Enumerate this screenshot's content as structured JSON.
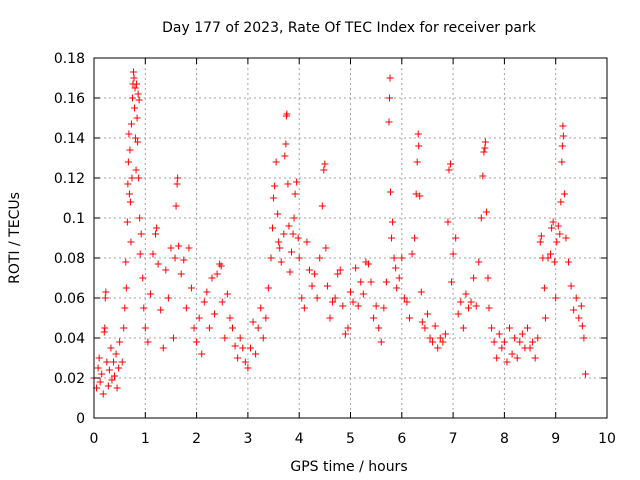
{
  "chart_data": {
    "type": "scatter",
    "title": "Day 177 of 2023, Rate Of TEC Index for receiver park",
    "xlabel": "GPS time / hours",
    "ylabel": "ROTI / TECUs",
    "xlim": [
      0,
      10
    ],
    "ylim": [
      0,
      0.18
    ],
    "xticks": [
      "0",
      "1",
      "2",
      "3",
      "4",
      "5",
      "6",
      "7",
      "8",
      "9",
      "10"
    ],
    "yticks": [
      "0",
      "0.02",
      "0.04",
      "0.06",
      "0.08",
      "0.1",
      "0.12",
      "0.14",
      "0.16",
      "0.18"
    ],
    "grid": true,
    "marker": "+",
    "colors": {
      "points": "#ff0000",
      "grid": "#a0a0a0",
      "axes": "#000000"
    },
    "series": [
      {
        "points": [
          [
            0.0,
            0.02
          ],
          [
            0.05,
            0.015
          ],
          [
            0.08,
            0.025
          ],
          [
            0.1,
            0.03
          ],
          [
            0.12,
            0.018
          ],
          [
            0.15,
            0.022
          ],
          [
            0.18,
            0.012
          ],
          [
            0.2,
            0.043
          ],
          [
            0.21,
            0.045
          ],
          [
            0.22,
            0.06
          ],
          [
            0.23,
            0.063
          ],
          [
            0.25,
            0.028
          ],
          [
            0.28,
            0.016
          ],
          [
            0.3,
            0.024
          ],
          [
            0.33,
            0.035
          ],
          [
            0.35,
            0.019
          ],
          [
            0.38,
            0.028
          ],
          [
            0.4,
            0.021
          ],
          [
            0.43,
            0.032
          ],
          [
            0.45,
            0.015
          ],
          [
            0.48,
            0.025
          ],
          [
            0.5,
            0.038
          ],
          [
            0.55,
            0.028
          ],
          [
            0.58,
            0.045
          ],
          [
            0.6,
            0.055
          ],
          [
            0.62,
            0.078
          ],
          [
            0.63,
            0.065
          ],
          [
            0.65,
            0.098
          ],
          [
            0.66,
            0.117
          ],
          [
            0.67,
            0.128
          ],
          [
            0.68,
            0.142
          ],
          [
            0.69,
            0.112
          ],
          [
            0.7,
            0.134
          ],
          [
            0.71,
            0.108
          ],
          [
            0.72,
            0.088
          ],
          [
            0.73,
            0.147
          ],
          [
            0.74,
            0.12
          ],
          [
            0.75,
            0.16
          ],
          [
            0.76,
            0.167
          ],
          [
            0.77,
            0.173
          ],
          [
            0.78,
            0.17
          ],
          [
            0.79,
            0.155
          ],
          [
            0.8,
            0.165
          ],
          [
            0.81,
            0.14
          ],
          [
            0.82,
            0.124
          ],
          [
            0.83,
            0.167
          ],
          [
            0.84,
            0.15
          ],
          [
            0.85,
            0.138
          ],
          [
            0.86,
            0.162
          ],
          [
            0.87,
            0.12
          ],
          [
            0.88,
            0.159
          ],
          [
            0.89,
            0.1
          ],
          [
            0.9,
            0.082
          ],
          [
            0.92,
            0.092
          ],
          [
            0.95,
            0.07
          ],
          [
            0.97,
            0.055
          ],
          [
            1.0,
            0.045
          ],
          [
            1.05,
            0.038
          ],
          [
            1.1,
            0.062
          ],
          [
            1.15,
            0.082
          ],
          [
            1.2,
            0.092
          ],
          [
            1.22,
            0.095
          ],
          [
            1.25,
            0.077
          ],
          [
            1.3,
            0.054
          ],
          [
            1.35,
            0.035
          ],
          [
            1.4,
            0.074
          ],
          [
            1.45,
            0.06
          ],
          [
            1.5,
            0.085
          ],
          [
            1.55,
            0.04
          ],
          [
            1.58,
            0.08
          ],
          [
            1.6,
            0.106
          ],
          [
            1.62,
            0.117
          ],
          [
            1.63,
            0.12
          ],
          [
            1.65,
            0.086
          ],
          [
            1.7,
            0.072
          ],
          [
            1.75,
            0.079
          ],
          [
            1.8,
            0.055
          ],
          [
            1.85,
            0.085
          ],
          [
            1.9,
            0.065
          ],
          [
            1.95,
            0.045
          ],
          [
            2.0,
            0.038
          ],
          [
            2.05,
            0.05
          ],
          [
            2.1,
            0.032
          ],
          [
            2.15,
            0.058
          ],
          [
            2.2,
            0.063
          ],
          [
            2.25,
            0.045
          ],
          [
            2.3,
            0.07
          ],
          [
            2.35,
            0.052
          ],
          [
            2.4,
            0.072
          ],
          [
            2.45,
            0.077
          ],
          [
            2.48,
            0.076
          ],
          [
            2.5,
            0.058
          ],
          [
            2.55,
            0.04
          ],
          [
            2.6,
            0.062
          ],
          [
            2.65,
            0.05
          ],
          [
            2.7,
            0.045
          ],
          [
            2.75,
            0.036
          ],
          [
            2.8,
            0.03
          ],
          [
            2.85,
            0.04
          ],
          [
            2.9,
            0.035
          ],
          [
            2.95,
            0.028
          ],
          [
            3.0,
            0.025
          ],
          [
            3.05,
            0.035
          ],
          [
            3.1,
            0.048
          ],
          [
            3.15,
            0.032
          ],
          [
            3.2,
            0.045
          ],
          [
            3.25,
            0.055
          ],
          [
            3.3,
            0.04
          ],
          [
            3.35,
            0.05
          ],
          [
            3.4,
            0.065
          ],
          [
            3.45,
            0.08
          ],
          [
            3.48,
            0.095
          ],
          [
            3.5,
            0.11
          ],
          [
            3.52,
            0.116
          ],
          [
            3.55,
            0.128
          ],
          [
            3.58,
            0.102
          ],
          [
            3.6,
            0.088
          ],
          [
            3.62,
            0.085
          ],
          [
            3.65,
            0.078
          ],
          [
            3.7,
            0.092
          ],
          [
            3.72,
            0.131
          ],
          [
            3.74,
            0.137
          ],
          [
            3.75,
            0.151
          ],
          [
            3.76,
            0.152
          ],
          [
            3.78,
            0.117
          ],
          [
            3.8,
            0.096
          ],
          [
            3.82,
            0.073
          ],
          [
            3.85,
            0.083
          ],
          [
            3.88,
            0.092
          ],
          [
            3.9,
            0.1
          ],
          [
            3.92,
            0.112
          ],
          [
            3.95,
            0.118
          ],
          [
            3.98,
            0.09
          ],
          [
            4.0,
            0.08
          ],
          [
            4.05,
            0.06
          ],
          [
            4.1,
            0.055
          ],
          [
            4.15,
            0.088
          ],
          [
            4.2,
            0.074
          ],
          [
            4.25,
            0.066
          ],
          [
            4.3,
            0.072
          ],
          [
            4.35,
            0.06
          ],
          [
            4.4,
            0.08
          ],
          [
            4.45,
            0.106
          ],
          [
            4.48,
            0.124
          ],
          [
            4.5,
            0.127
          ],
          [
            4.52,
            0.085
          ],
          [
            4.55,
            0.066
          ],
          [
            4.6,
            0.05
          ],
          [
            4.65,
            0.058
          ],
          [
            4.7,
            0.06
          ],
          [
            4.75,
            0.072
          ],
          [
            4.8,
            0.074
          ],
          [
            4.85,
            0.056
          ],
          [
            4.9,
            0.042
          ],
          [
            4.95,
            0.045
          ],
          [
            5.0,
            0.063
          ],
          [
            5.05,
            0.058
          ],
          [
            5.1,
            0.075
          ],
          [
            5.15,
            0.056
          ],
          [
            5.2,
            0.068
          ],
          [
            5.25,
            0.062
          ],
          [
            5.3,
            0.078
          ],
          [
            5.35,
            0.077
          ],
          [
            5.4,
            0.068
          ],
          [
            5.45,
            0.05
          ],
          [
            5.5,
            0.056
          ],
          [
            5.55,
            0.045
          ],
          [
            5.6,
            0.038
          ],
          [
            5.65,
            0.055
          ],
          [
            5.7,
            0.068
          ],
          [
            5.75,
            0.148
          ],
          [
            5.76,
            0.16
          ],
          [
            5.77,
            0.17
          ],
          [
            5.78,
            0.113
          ],
          [
            5.8,
            0.09
          ],
          [
            5.82,
            0.098
          ],
          [
            5.85,
            0.08
          ],
          [
            5.88,
            0.075
          ],
          [
            5.9,
            0.065
          ],
          [
            5.95,
            0.07
          ],
          [
            6.0,
            0.08
          ],
          [
            6.05,
            0.06
          ],
          [
            6.1,
            0.058
          ],
          [
            6.15,
            0.05
          ],
          [
            6.2,
            0.082
          ],
          [
            6.25,
            0.09
          ],
          [
            6.28,
            0.112
          ],
          [
            6.3,
            0.128
          ],
          [
            6.32,
            0.142
          ],
          [
            6.33,
            0.136
          ],
          [
            6.35,
            0.111
          ],
          [
            6.38,
            0.063
          ],
          [
            6.4,
            0.048
          ],
          [
            6.45,
            0.045
          ],
          [
            6.5,
            0.052
          ],
          [
            6.55,
            0.04
          ],
          [
            6.6,
            0.038
          ],
          [
            6.65,
            0.046
          ],
          [
            6.7,
            0.035
          ],
          [
            6.75,
            0.04
          ],
          [
            6.8,
            0.038
          ],
          [
            6.85,
            0.042
          ],
          [
            6.9,
            0.098
          ],
          [
            6.92,
            0.124
          ],
          [
            6.95,
            0.127
          ],
          [
            6.97,
            0.068
          ],
          [
            7.0,
            0.082
          ],
          [
            7.05,
            0.09
          ],
          [
            7.1,
            0.052
          ],
          [
            7.15,
            0.058
          ],
          [
            7.2,
            0.045
          ],
          [
            7.25,
            0.062
          ],
          [
            7.3,
            0.055
          ],
          [
            7.35,
            0.058
          ],
          [
            7.4,
            0.07
          ],
          [
            7.45,
            0.056
          ],
          [
            7.5,
            0.078
          ],
          [
            7.55,
            0.1
          ],
          [
            7.58,
            0.121
          ],
          [
            7.6,
            0.133
          ],
          [
            7.62,
            0.135
          ],
          [
            7.63,
            0.138
          ],
          [
            7.65,
            0.103
          ],
          [
            7.68,
            0.07
          ],
          [
            7.7,
            0.055
          ],
          [
            7.75,
            0.045
          ],
          [
            7.8,
            0.038
          ],
          [
            7.85,
            0.03
          ],
          [
            7.9,
            0.042
          ],
          [
            7.95,
            0.035
          ],
          [
            8.0,
            0.038
          ],
          [
            8.05,
            0.028
          ],
          [
            8.1,
            0.045
          ],
          [
            8.15,
            0.032
          ],
          [
            8.2,
            0.04
          ],
          [
            8.25,
            0.03
          ],
          [
            8.3,
            0.038
          ],
          [
            8.35,
            0.042
          ],
          [
            8.4,
            0.035
          ],
          [
            8.45,
            0.045
          ],
          [
            8.5,
            0.035
          ],
          [
            8.55,
            0.038
          ],
          [
            8.6,
            0.03
          ],
          [
            8.65,
            0.04
          ],
          [
            8.7,
            0.088
          ],
          [
            8.72,
            0.091
          ],
          [
            8.75,
            0.08
          ],
          [
            8.78,
            0.065
          ],
          [
            8.8,
            0.05
          ],
          [
            8.85,
            0.08
          ],
          [
            8.9,
            0.082
          ],
          [
            8.92,
            0.095
          ],
          [
            8.95,
            0.098
          ],
          [
            8.98,
            0.078
          ],
          [
            9.0,
            0.06
          ],
          [
            9.02,
            0.088
          ],
          [
            9.05,
            0.096
          ],
          [
            9.08,
            0.092
          ],
          [
            9.1,
            0.108
          ],
          [
            9.12,
            0.128
          ],
          [
            9.13,
            0.136
          ],
          [
            9.14,
            0.146
          ],
          [
            9.15,
            0.141
          ],
          [
            9.17,
            0.112
          ],
          [
            9.2,
            0.09
          ],
          [
            9.25,
            0.078
          ],
          [
            9.3,
            0.066
          ],
          [
            9.35,
            0.054
          ],
          [
            9.4,
            0.06
          ],
          [
            9.45,
            0.05
          ],
          [
            9.5,
            0.056
          ],
          [
            9.52,
            0.046
          ],
          [
            9.55,
            0.04
          ],
          [
            9.58,
            0.022
          ]
        ]
      }
    ]
  }
}
